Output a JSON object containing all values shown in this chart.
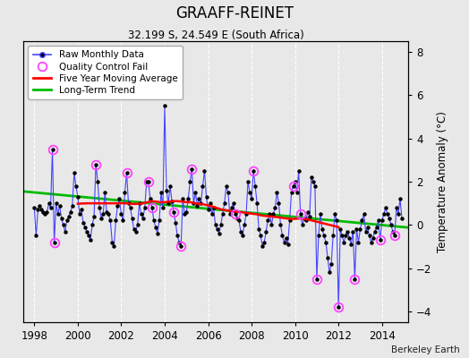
{
  "title": "GRAAFF-REINET",
  "subtitle": "32.199 S, 24.549 E (South Africa)",
  "ylabel": "Temperature Anomaly (°C)",
  "credit": "Berkeley Earth",
  "xlim": [
    1997.5,
    2015.2
  ],
  "ylim": [
    -4.5,
    8.5
  ],
  "yticks": [
    -4,
    -2,
    0,
    2,
    4,
    6,
    8
  ],
  "xticks": [
    1998,
    2000,
    2002,
    2004,
    2006,
    2008,
    2010,
    2012,
    2014
  ],
  "bg_color": "#e8e8e8",
  "grid_color": "#ffffff",
  "raw_color": "#4444ff",
  "raw_marker_color": "#000000",
  "ma_color": "#ff0000",
  "trend_color": "#00bb00",
  "qc_color": "#ff44ff",
  "raw_monthly": [
    [
      1998.0,
      0.8
    ],
    [
      1998.083,
      -0.5
    ],
    [
      1998.167,
      0.7
    ],
    [
      1998.25,
      0.9
    ],
    [
      1998.333,
      0.7
    ],
    [
      1998.417,
      0.6
    ],
    [
      1998.5,
      0.5
    ],
    [
      1998.583,
      0.6
    ],
    [
      1998.667,
      1.0
    ],
    [
      1998.75,
      0.8
    ],
    [
      1998.833,
      3.5
    ],
    [
      1998.917,
      -0.8
    ],
    [
      1999.0,
      1.0
    ],
    [
      1999.083,
      0.5
    ],
    [
      1999.167,
      0.9
    ],
    [
      1999.25,
      0.3
    ],
    [
      1999.333,
      0.0
    ],
    [
      1999.417,
      -0.3
    ],
    [
      1999.5,
      0.2
    ],
    [
      1999.583,
      0.4
    ],
    [
      1999.667,
      0.6
    ],
    [
      1999.75,
      0.9
    ],
    [
      1999.833,
      2.4
    ],
    [
      1999.917,
      1.8
    ],
    [
      2000.0,
      1.3
    ],
    [
      2000.083,
      0.5
    ],
    [
      2000.167,
      0.7
    ],
    [
      2000.25,
      0.1
    ],
    [
      2000.333,
      -0.1
    ],
    [
      2000.417,
      -0.3
    ],
    [
      2000.5,
      -0.5
    ],
    [
      2000.583,
      -0.7
    ],
    [
      2000.667,
      0.0
    ],
    [
      2000.75,
      0.4
    ],
    [
      2000.833,
      2.8
    ],
    [
      2000.917,
      2.0
    ],
    [
      2001.0,
      0.8
    ],
    [
      2001.083,
      0.3
    ],
    [
      2001.167,
      0.5
    ],
    [
      2001.25,
      1.5
    ],
    [
      2001.333,
      0.6
    ],
    [
      2001.417,
      0.5
    ],
    [
      2001.5,
      0.2
    ],
    [
      2001.583,
      -0.8
    ],
    [
      2001.667,
      -1.0
    ],
    [
      2001.75,
      0.2
    ],
    [
      2001.833,
      0.9
    ],
    [
      2001.917,
      1.2
    ],
    [
      2002.0,
      0.5
    ],
    [
      2002.083,
      0.2
    ],
    [
      2002.167,
      1.5
    ],
    [
      2002.25,
      2.4
    ],
    [
      2002.333,
      1.0
    ],
    [
      2002.417,
      0.8
    ],
    [
      2002.5,
      0.3
    ],
    [
      2002.583,
      -0.2
    ],
    [
      2002.667,
      -0.3
    ],
    [
      2002.75,
      0.0
    ],
    [
      2002.833,
      1.0
    ],
    [
      2002.917,
      0.5
    ],
    [
      2003.0,
      0.3
    ],
    [
      2003.083,
      0.8
    ],
    [
      2003.167,
      2.0
    ],
    [
      2003.25,
      2.0
    ],
    [
      2003.333,
      1.2
    ],
    [
      2003.417,
      0.8
    ],
    [
      2003.5,
      0.2
    ],
    [
      2003.583,
      -0.1
    ],
    [
      2003.667,
      -0.4
    ],
    [
      2003.75,
      0.2
    ],
    [
      2003.833,
      1.5
    ],
    [
      2003.917,
      0.8
    ],
    [
      2004.0,
      5.5
    ],
    [
      2004.083,
      1.6
    ],
    [
      2004.167,
      1.0
    ],
    [
      2004.25,
      1.8
    ],
    [
      2004.333,
      1.1
    ],
    [
      2004.417,
      0.6
    ],
    [
      2004.5,
      0.1
    ],
    [
      2004.583,
      -0.5
    ],
    [
      2004.667,
      -0.8
    ],
    [
      2004.75,
      -1.0
    ],
    [
      2004.833,
      1.2
    ],
    [
      2004.917,
      0.5
    ],
    [
      2005.0,
      0.6
    ],
    [
      2005.083,
      1.2
    ],
    [
      2005.167,
      2.0
    ],
    [
      2005.25,
      2.6
    ],
    [
      2005.333,
      1.0
    ],
    [
      2005.417,
      1.5
    ],
    [
      2005.5,
      0.9
    ],
    [
      2005.583,
      1.2
    ],
    [
      2005.667,
      1.0
    ],
    [
      2005.75,
      1.8
    ],
    [
      2005.833,
      2.5
    ],
    [
      2005.917,
      1.3
    ],
    [
      2006.0,
      0.7
    ],
    [
      2006.083,
      1.0
    ],
    [
      2006.167,
      0.5
    ],
    [
      2006.25,
      0.8
    ],
    [
      2006.333,
      0.0
    ],
    [
      2006.417,
      -0.2
    ],
    [
      2006.5,
      -0.4
    ],
    [
      2006.583,
      0.0
    ],
    [
      2006.667,
      0.5
    ],
    [
      2006.75,
      1.0
    ],
    [
      2006.833,
      1.8
    ],
    [
      2006.917,
      1.5
    ],
    [
      2007.0,
      0.5
    ],
    [
      2007.083,
      0.8
    ],
    [
      2007.167,
      1.0
    ],
    [
      2007.25,
      0.5
    ],
    [
      2007.333,
      0.3
    ],
    [
      2007.417,
      0.2
    ],
    [
      2007.5,
      -0.3
    ],
    [
      2007.583,
      -0.5
    ],
    [
      2007.667,
      0.0
    ],
    [
      2007.75,
      0.5
    ],
    [
      2007.833,
      2.0
    ],
    [
      2007.917,
      1.5
    ],
    [
      2008.0,
      1.2
    ],
    [
      2008.083,
      2.5
    ],
    [
      2008.167,
      1.8
    ],
    [
      2008.25,
      1.0
    ],
    [
      2008.333,
      -0.2
    ],
    [
      2008.417,
      -0.5
    ],
    [
      2008.5,
      -1.0
    ],
    [
      2008.583,
      -0.8
    ],
    [
      2008.667,
      -0.3
    ],
    [
      2008.75,
      0.2
    ],
    [
      2008.833,
      0.5
    ],
    [
      2008.917,
      0.0
    ],
    [
      2009.0,
      0.5
    ],
    [
      2009.083,
      0.8
    ],
    [
      2009.167,
      1.5
    ],
    [
      2009.25,
      1.0
    ],
    [
      2009.333,
      0.0
    ],
    [
      2009.417,
      -0.5
    ],
    [
      2009.5,
      -0.8
    ],
    [
      2009.583,
      -0.6
    ],
    [
      2009.667,
      -0.9
    ],
    [
      2009.75,
      0.2
    ],
    [
      2009.833,
      1.5
    ],
    [
      2009.917,
      1.8
    ],
    [
      2010.0,
      2.0
    ],
    [
      2010.083,
      1.5
    ],
    [
      2010.167,
      2.5
    ],
    [
      2010.25,
      0.5
    ],
    [
      2010.333,
      0.0
    ],
    [
      2010.417,
      0.3
    ],
    [
      2010.5,
      0.2
    ],
    [
      2010.583,
      0.6
    ],
    [
      2010.667,
      0.4
    ],
    [
      2010.75,
      2.2
    ],
    [
      2010.833,
      2.0
    ],
    [
      2010.917,
      1.8
    ],
    [
      2011.0,
      -2.5
    ],
    [
      2011.083,
      -0.5
    ],
    [
      2011.167,
      0.5
    ],
    [
      2011.25,
      -0.2
    ],
    [
      2011.333,
      -0.5
    ],
    [
      2011.417,
      -0.8
    ],
    [
      2011.5,
      -1.5
    ],
    [
      2011.583,
      -2.2
    ],
    [
      2011.667,
      -1.8
    ],
    [
      2011.75,
      -0.5
    ],
    [
      2011.833,
      0.5
    ],
    [
      2011.917,
      0.2
    ],
    [
      2012.0,
      -3.8
    ],
    [
      2012.083,
      -0.2
    ],
    [
      2012.167,
      -0.5
    ],
    [
      2012.25,
      -0.8
    ],
    [
      2012.333,
      -0.5
    ],
    [
      2012.417,
      -0.3
    ],
    [
      2012.5,
      -0.6
    ],
    [
      2012.583,
      -0.9
    ],
    [
      2012.667,
      -0.3
    ],
    [
      2012.75,
      -2.5
    ],
    [
      2012.833,
      -0.2
    ],
    [
      2012.917,
      -0.8
    ],
    [
      2013.0,
      -0.2
    ],
    [
      2013.083,
      0.2
    ],
    [
      2013.167,
      0.5
    ],
    [
      2013.25,
      -0.3
    ],
    [
      2013.333,
      -0.1
    ],
    [
      2013.417,
      -0.5
    ],
    [
      2013.5,
      -0.8
    ],
    [
      2013.583,
      -0.6
    ],
    [
      2013.667,
      -0.3
    ],
    [
      2013.75,
      -0.1
    ],
    [
      2013.833,
      0.2
    ],
    [
      2013.917,
      -0.7
    ],
    [
      2014.0,
      0.2
    ],
    [
      2014.083,
      0.5
    ],
    [
      2014.167,
      0.8
    ],
    [
      2014.25,
      0.5
    ],
    [
      2014.333,
      0.3
    ],
    [
      2014.417,
      0.0
    ],
    [
      2014.5,
      -0.3
    ],
    [
      2014.583,
      -0.5
    ],
    [
      2014.667,
      0.8
    ],
    [
      2014.75,
      0.5
    ],
    [
      2014.833,
      1.2
    ],
    [
      2014.917,
      0.3
    ]
  ],
  "qc_fail": [
    [
      1998.833,
      3.5
    ],
    [
      1998.917,
      -0.8
    ],
    [
      2000.833,
      2.8
    ],
    [
      2002.25,
      2.4
    ],
    [
      2003.25,
      2.0
    ],
    [
      2003.417,
      0.8
    ],
    [
      2004.417,
      0.6
    ],
    [
      2004.75,
      -1.0
    ],
    [
      2005.25,
      2.6
    ],
    [
      2007.25,
      0.5
    ],
    [
      2008.083,
      2.5
    ],
    [
      2009.917,
      1.8
    ],
    [
      2010.25,
      0.5
    ],
    [
      2011.0,
      -2.5
    ],
    [
      2012.0,
      -3.8
    ],
    [
      2012.75,
      -2.5
    ],
    [
      2013.917,
      -0.7
    ],
    [
      2014.583,
      -0.5
    ]
  ],
  "moving_avg": [
    [
      2000.0,
      0.98
    ],
    [
      2000.2,
      0.99
    ],
    [
      2000.4,
      1.0
    ],
    [
      2000.6,
      1.0
    ],
    [
      2000.8,
      1.0
    ],
    [
      2001.0,
      1.0
    ],
    [
      2001.2,
      1.0
    ],
    [
      2001.4,
      1.0
    ],
    [
      2001.6,
      1.0
    ],
    [
      2001.8,
      1.0
    ],
    [
      2002.0,
      1.0
    ],
    [
      2002.2,
      1.0
    ],
    [
      2002.4,
      0.98
    ],
    [
      2002.6,
      0.97
    ],
    [
      2002.8,
      0.98
    ],
    [
      2003.0,
      1.0
    ],
    [
      2003.2,
      1.05
    ],
    [
      2003.4,
      1.1
    ],
    [
      2003.6,
      1.08
    ],
    [
      2003.8,
      1.05
    ],
    [
      2004.0,
      1.05
    ],
    [
      2004.2,
      1.08
    ],
    [
      2004.4,
      1.1
    ],
    [
      2004.6,
      1.1
    ],
    [
      2004.8,
      1.08
    ],
    [
      2005.0,
      1.05
    ],
    [
      2005.2,
      1.05
    ],
    [
      2005.4,
      1.0
    ],
    [
      2005.6,
      0.98
    ],
    [
      2005.8,
      0.95
    ],
    [
      2006.0,
      0.9
    ],
    [
      2006.2,
      0.85
    ],
    [
      2006.4,
      0.78
    ],
    [
      2006.6,
      0.72
    ],
    [
      2006.8,
      0.68
    ],
    [
      2007.0,
      0.65
    ],
    [
      2007.2,
      0.62
    ],
    [
      2007.4,
      0.6
    ],
    [
      2007.6,
      0.58
    ],
    [
      2007.8,
      0.55
    ],
    [
      2008.0,
      0.52
    ],
    [
      2008.2,
      0.5
    ],
    [
      2008.4,
      0.45
    ],
    [
      2008.6,
      0.42
    ],
    [
      2008.8,
      0.4
    ],
    [
      2009.0,
      0.38
    ],
    [
      2009.2,
      0.36
    ],
    [
      2009.4,
      0.33
    ],
    [
      2009.6,
      0.3
    ],
    [
      2009.8,
      0.28
    ],
    [
      2010.0,
      0.28
    ],
    [
      2010.2,
      0.3
    ],
    [
      2010.4,
      0.28
    ],
    [
      2010.6,
      0.25
    ],
    [
      2010.8,
      0.2
    ],
    [
      2011.0,
      0.15
    ],
    [
      2011.2,
      0.1
    ],
    [
      2011.4,
      0.05
    ],
    [
      2011.6,
      0.0
    ],
    [
      2011.8,
      -0.05
    ],
    [
      2012.0,
      -0.1
    ]
  ],
  "trend_x": [
    1997.5,
    2015.2
  ],
  "trend_y": [
    1.55,
    -0.12
  ]
}
